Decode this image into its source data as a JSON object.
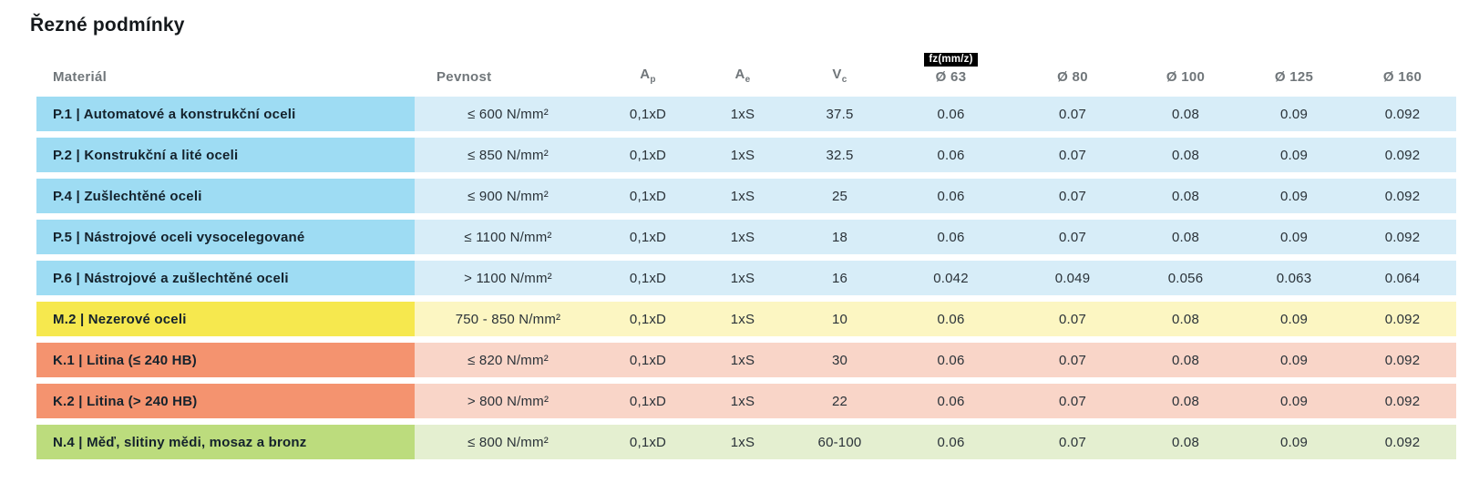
{
  "page": {
    "title": "Řezné podmínky"
  },
  "colors": {
    "blue_label": "#9edcf3",
    "blue_row": "#d7edf8",
    "yellow_label": "#f6e84e",
    "yellow_row": "#fcf6c2",
    "orange_label": "#f4936f",
    "orange_row": "#f9d5c8",
    "green_label": "#bcdc7d",
    "green_row": "#e4efd0",
    "badge_bg": "#000000",
    "badge_text": "#ffffff",
    "header_text": "#70767a"
  },
  "table": {
    "headers": {
      "material": "Materiál",
      "pevnost": "Pevnost",
      "ap_base": "A",
      "ap_sub": "p",
      "ae_base": "A",
      "ae_sub": "e",
      "vc_base": "V",
      "vc_sub": "c",
      "fz_badge": "fz(mm/z)",
      "d63": "Ø 63",
      "d80": "Ø 80",
      "d100": "Ø 100",
      "d125": "Ø 125",
      "d160": "Ø 160"
    },
    "rows": [
      {
        "color_group": "blue",
        "material": "P.1 | Automatové a konstrukční oceli",
        "pevnost": "≤ 600 N/mm²",
        "ap": "0,1xD",
        "ae": "1xS",
        "vc": "37.5",
        "fz63": "0.06",
        "fz80": "0.07",
        "fz100": "0.08",
        "fz125": "0.09",
        "fz160": "0.092"
      },
      {
        "color_group": "blue",
        "material": "P.2 | Konstrukční a lité oceli",
        "pevnost": "≤ 850 N/mm²",
        "ap": "0,1xD",
        "ae": "1xS",
        "vc": "32.5",
        "fz63": "0.06",
        "fz80": "0.07",
        "fz100": "0.08",
        "fz125": "0.09",
        "fz160": "0.092"
      },
      {
        "color_group": "blue",
        "material": "P.4 | Zušlechtěné oceli",
        "pevnost": "≤ 900 N/mm²",
        "ap": "0,1xD",
        "ae": "1xS",
        "vc": "25",
        "fz63": "0.06",
        "fz80": "0.07",
        "fz100": "0.08",
        "fz125": "0.09",
        "fz160": "0.092"
      },
      {
        "color_group": "blue",
        "material": "P.5 | Nástrojové oceli vysocelegované",
        "pevnost": "≤ 1100 N/mm²",
        "ap": "0,1xD",
        "ae": "1xS",
        "vc": "18",
        "fz63": "0.06",
        "fz80": "0.07",
        "fz100": "0.08",
        "fz125": "0.09",
        "fz160": "0.092"
      },
      {
        "color_group": "blue",
        "material": "P.6 | Nástrojové a zušlechtěné oceli",
        "pevnost": "> 1100 N/mm²",
        "ap": "0,1xD",
        "ae": "1xS",
        "vc": "16",
        "fz63": "0.042",
        "fz80": "0.049",
        "fz100": "0.056",
        "fz125": "0.063",
        "fz160": "0.064"
      },
      {
        "color_group": "yellow",
        "material": "M.2 | Nezerové oceli",
        "pevnost": "750 - 850 N/mm²",
        "ap": "0,1xD",
        "ae": "1xS",
        "vc": "10",
        "fz63": "0.06",
        "fz80": "0.07",
        "fz100": "0.08",
        "fz125": "0.09",
        "fz160": "0.092"
      },
      {
        "color_group": "orange",
        "material": "K.1 | Litina (≤ 240 HB)",
        "pevnost": "≤ 820 N/mm²",
        "ap": "0,1xD",
        "ae": "1xS",
        "vc": "30",
        "fz63": "0.06",
        "fz80": "0.07",
        "fz100": "0.08",
        "fz125": "0.09",
        "fz160": "0.092"
      },
      {
        "color_group": "orange",
        "material": "K.2 | Litina (> 240 HB)",
        "pevnost": "> 800 N/mm²",
        "ap": "0,1xD",
        "ae": "1xS",
        "vc": "22",
        "fz63": "0.06",
        "fz80": "0.07",
        "fz100": "0.08",
        "fz125": "0.09",
        "fz160": "0.092"
      },
      {
        "color_group": "green",
        "material": "N.4 | Měď, slitiny mědi, mosaz a bronz",
        "pevnost": "≤ 800 N/mm²",
        "ap": "0,1xD",
        "ae": "1xS",
        "vc": "60-100",
        "fz63": "0.06",
        "fz80": "0.07",
        "fz100": "0.08",
        "fz125": "0.09",
        "fz160": "0.092"
      }
    ]
  }
}
